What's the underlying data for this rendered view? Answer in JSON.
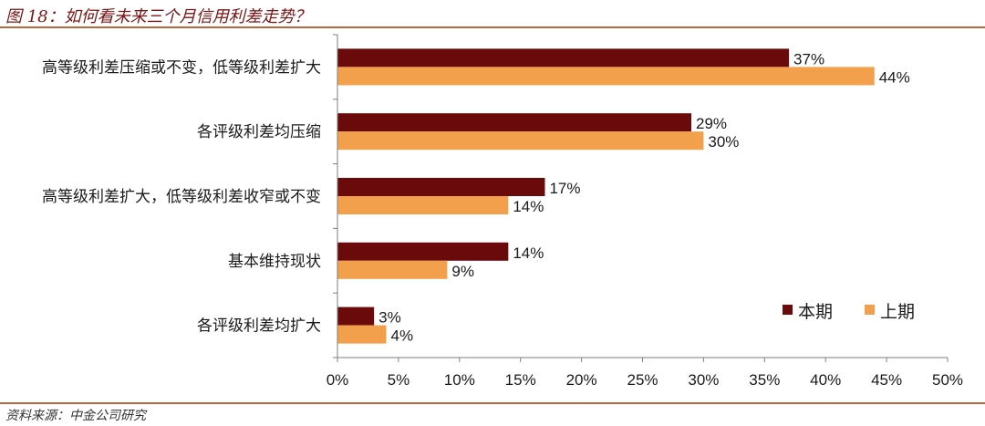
{
  "title": "图 18：如何看未来三个月信用利差走势？",
  "source": "资料来源：中金公司研究",
  "colors": {
    "current": "#6b0a0a",
    "previous": "#f2a04c",
    "rule": "#b46a3c",
    "title": "#7a1414"
  },
  "chart_data": {
    "type": "bar",
    "orientation": "horizontal",
    "categories": [
      "高等级利差压缩或不变，低等级利差扩大",
      "各评级利差均压缩",
      "高等级利差扩大，低等级利差收窄或不变",
      "基本维持现状",
      "各评级利差均扩大"
    ],
    "series": [
      {
        "name": "本期",
        "values": [
          37,
          29,
          17,
          14,
          3
        ],
        "labels": [
          "37%",
          "29%",
          "17%",
          "14%",
          "3%"
        ]
      },
      {
        "name": "上期",
        "values": [
          44,
          30,
          14,
          9,
          4
        ],
        "labels": [
          "44%",
          "30%",
          "14%",
          "9%",
          "4%"
        ]
      }
    ],
    "xlim": [
      0,
      50
    ],
    "xticks": [
      "0%",
      "5%",
      "10%",
      "15%",
      "20%",
      "25%",
      "30%",
      "35%",
      "40%",
      "45%",
      "50%"
    ],
    "legend_position": "bottom-right",
    "grid": false
  }
}
